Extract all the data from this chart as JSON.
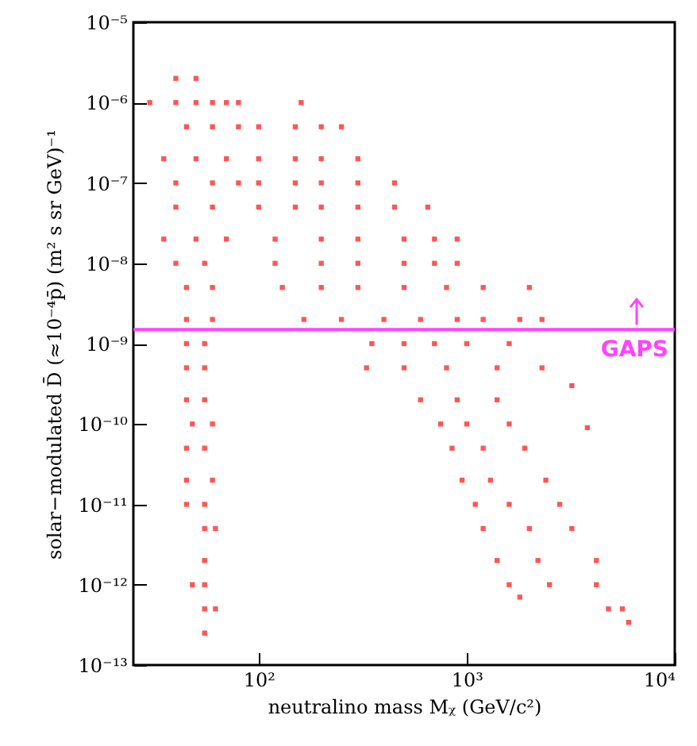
{
  "chart_data": {
    "type": "scatter",
    "xlabel": "neutralino mass Mᵪ (GeV/c²)",
    "ylabel": "solar−modulated D̄ (≈10⁻⁴p̄) (m² s sr GeV)⁻¹",
    "log": "xy",
    "marker": "square",
    "grid": false,
    "xlim": [
      25,
      10000
    ],
    "xticks": [
      {
        "value": 100,
        "label": "10²"
      },
      {
        "value": 1000,
        "label": "10³"
      },
      {
        "value": 10000,
        "label": "10⁴"
      }
    ],
    "ylim": [
      1e-13,
      1e-05
    ],
    "yticks": [
      {
        "value": 1e-13,
        "label": "10⁻¹³"
      },
      {
        "value": 1e-12,
        "label": "10⁻¹²"
      },
      {
        "value": 1e-11,
        "label": "10⁻¹¹"
      },
      {
        "value": 1e-10,
        "label": "10⁻¹⁰"
      },
      {
        "value": 1e-09,
        "label": "10⁻⁹"
      },
      {
        "value": 1e-08,
        "label": "10⁻⁸"
      },
      {
        "value": 1e-07,
        "label": "10⁻⁷"
      },
      {
        "value": 1e-06,
        "label": "10⁻⁶"
      },
      {
        "value": 1e-05,
        "label": "10⁻⁵"
      }
    ],
    "ref_lines": [
      {
        "axis": "y",
        "value": 1.5e-09,
        "label": "GAPS",
        "color": "#ff44ff"
      }
    ],
    "series": [
      {
        "color": "#ff5555",
        "x": [
          40,
          50,
          30,
          40,
          50,
          60,
          70,
          80,
          160,
          45,
          60,
          80,
          100,
          150,
          200,
          250,
          35,
          50,
          70,
          100,
          150,
          200,
          300,
          40,
          60,
          80,
          100,
          150,
          200,
          300,
          450,
          40,
          60,
          100,
          150,
          200,
          300,
          450,
          650,
          35,
          50,
          70,
          120,
          200,
          300,
          500,
          700,
          900,
          40,
          55,
          120,
          200,
          300,
          500,
          700,
          900,
          45,
          60,
          130,
          200,
          300,
          500,
          800,
          1200,
          2000,
          45,
          60,
          165,
          250,
          400,
          600,
          900,
          1200,
          1800,
          2300,
          45,
          55,
          350,
          500,
          700,
          1000,
          1600,
          45,
          55,
          330,
          500,
          800,
          1400,
          2300,
          45,
          55,
          600,
          900,
          1400,
          3200,
          48,
          60,
          750,
          1000,
          1600,
          3800,
          45,
          55,
          850,
          1200,
          1900,
          45,
          60,
          950,
          1300,
          2400,
          45,
          55,
          1100,
          1600,
          2800,
          55,
          62,
          1200,
          2000,
          3200,
          55,
          1400,
          2200,
          4200,
          48,
          55,
          1600,
          2500,
          4200,
          1800,
          55,
          62,
          4800,
          5600,
          6000,
          55
        ],
        "values": [
          2e-06,
          2e-06,
          1e-06,
          1e-06,
          1e-06,
          1e-06,
          1e-06,
          1e-06,
          1e-06,
          5e-07,
          5e-07,
          5e-07,
          5e-07,
          5e-07,
          5e-07,
          5e-07,
          2e-07,
          2e-07,
          2e-07,
          2e-07,
          2e-07,
          2e-07,
          2e-07,
          1e-07,
          1e-07,
          1e-07,
          1e-07,
          1e-07,
          1e-07,
          1e-07,
          1e-07,
          5e-08,
          5e-08,
          5e-08,
          5e-08,
          5e-08,
          5e-08,
          5e-08,
          5e-08,
          2e-08,
          2e-08,
          2e-08,
          2e-08,
          2e-08,
          2e-08,
          2e-08,
          2e-08,
          2e-08,
          1e-08,
          1e-08,
          1e-08,
          1e-08,
          1e-08,
          1e-08,
          1e-08,
          1e-08,
          5e-09,
          5e-09,
          5e-09,
          5e-09,
          5e-09,
          5e-09,
          5e-09,
          5e-09,
          5e-09,
          2e-09,
          2e-09,
          2e-09,
          2e-09,
          2e-09,
          2e-09,
          2e-09,
          2e-09,
          2e-09,
          2e-09,
          1e-09,
          1e-09,
          1e-09,
          1e-09,
          1e-09,
          1e-09,
          1e-09,
          5e-10,
          5e-10,
          5e-10,
          5e-10,
          5e-10,
          5e-10,
          5e-10,
          2e-10,
          2e-10,
          2e-10,
          2e-10,
          2e-10,
          3e-10,
          1e-10,
          1e-10,
          1e-10,
          1e-10,
          1e-10,
          9e-11,
          5e-11,
          5e-11,
          5e-11,
          5e-11,
          5e-11,
          2e-11,
          2e-11,
          2e-11,
          2e-11,
          2e-11,
          1e-11,
          1e-11,
          1e-11,
          1e-11,
          1e-11,
          5e-12,
          5e-12,
          5e-12,
          5e-12,
          5e-12,
          2e-12,
          2e-12,
          2e-12,
          2e-12,
          1e-12,
          1e-12,
          1e-12,
          1e-12,
          1e-12,
          7e-13,
          5e-13,
          5e-13,
          5e-13,
          5e-13,
          3.4e-13,
          2.5e-13
        ]
      }
    ]
  }
}
